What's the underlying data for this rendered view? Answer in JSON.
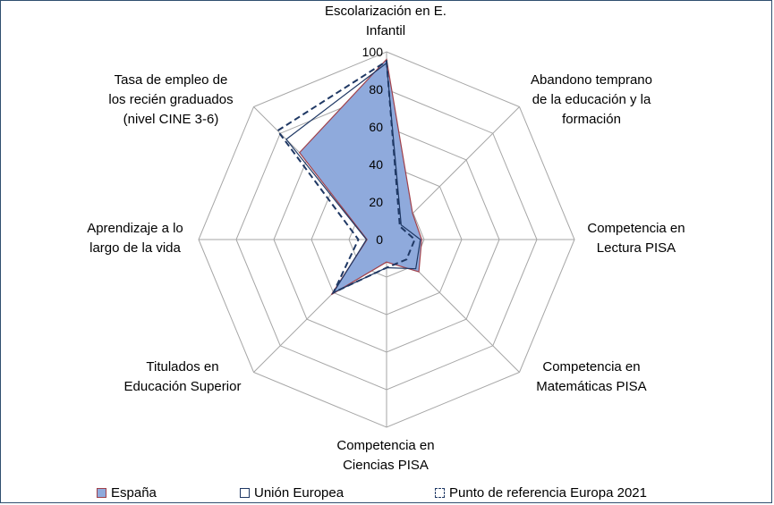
{
  "chart_data": {
    "type": "radar",
    "axes": [
      "Escolarización en E.\nInfantil",
      "Abandono temprano\nde la educación y la\nformación",
      "Competencia en\nLectura PISA",
      "Competencia en\nMatemáticas PISA",
      "Competencia en\nCiencias PISA",
      "Titulados en\nEducación Superior",
      "Aprendizaje a lo\nlargo de la vida",
      "Tasa de empleo de\nlos recién graduados\n(nivel CINE 3-6)"
    ],
    "r_ticks": [
      "0",
      "20",
      "40",
      "60",
      "80",
      "100"
    ],
    "rlim": [
      0,
      100
    ],
    "grid": true,
    "legend_position": "bottom",
    "series": [
      {
        "name": "España",
        "values": [
          96,
          19.6,
          18.7,
          24.3,
          12,
          41.5,
          10.4,
          65.5
        ],
        "fill": "#8faadc",
        "stroke": "#a0404a"
      },
      {
        "name": "Unión Europea",
        "values": [
          94,
          11,
          18,
          22,
          15,
          40,
          10.7,
          75.5
        ],
        "fill": "none",
        "stroke": "#1f3864"
      },
      {
        "name": "Punto de referencia Europa 2021",
        "values": [
          95,
          10,
          15,
          15,
          15,
          40,
          15,
          82
        ],
        "fill": "none",
        "stroke": "#1f3864",
        "dashed": true
      }
    ]
  },
  "colors": {
    "grid": "#a6a6a6",
    "frame": "#2f4f6f"
  }
}
